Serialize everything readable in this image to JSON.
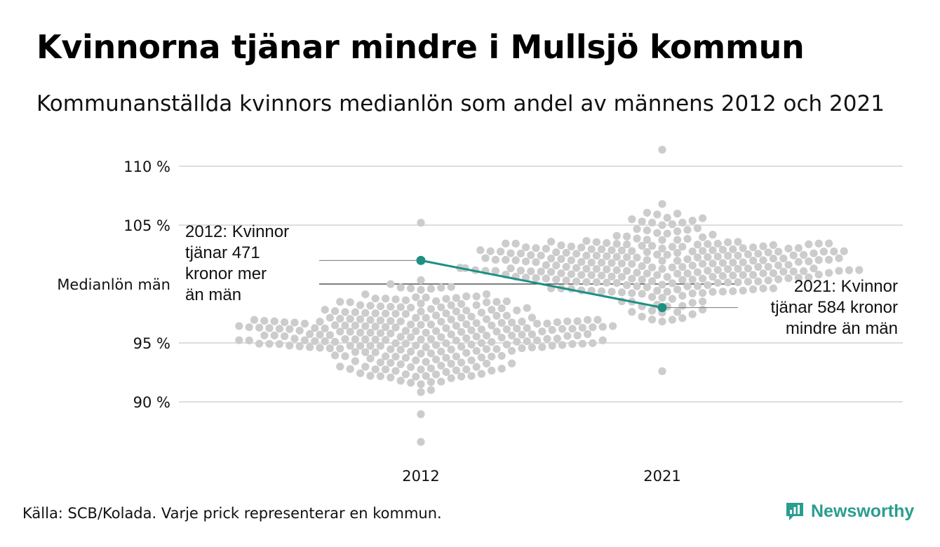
{
  "title": "Kvinnorna tjänar mindre i Mullsjö kommun",
  "subtitle": "Kommunanställda kvinnors medianlön som andel av männens 2012 och 2021",
  "source": "Källa: SCB/Kolada. Varje prick representerar en kommun.",
  "brand": "Newsworthy",
  "colors": {
    "dots": "#cccccc",
    "highlight": "#1e9083",
    "grid": "#dddddd",
    "reference": "#333333",
    "brand": "#2a9d8f"
  },
  "chart_data": {
    "type": "scatter",
    "subtype": "beeswarm with highlighted series",
    "categories": [
      "2012",
      "2021"
    ],
    "ylabel": "",
    "ylim": [
      86,
      112
    ],
    "yticks": [
      {
        "value": 90,
        "label": "90 %"
      },
      {
        "value": 95,
        "label": "95 %"
      },
      {
        "value": 100,
        "label": "Medianlön män"
      },
      {
        "value": 105,
        "label": "105 %"
      },
      {
        "value": 110,
        "label": "110 %"
      }
    ],
    "reference_line": {
      "value": 100,
      "label": "Medianlön män"
    },
    "highlight": {
      "values": [
        102.0,
        98.0
      ],
      "annotations": [
        {
          "category": "2012",
          "lines": [
            "2012: Kvinnor",
            "tjänar 471",
            "kronor mer",
            "än män"
          ]
        },
        {
          "category": "2021",
          "lines": [
            "2021: Kvinnor",
            "tjänar 584 kronor",
            "mindre än män"
          ]
        }
      ]
    },
    "distribution": [
      {
        "category": "2012",
        "n": 290,
        "center": 95.5,
        "spread": 2.6,
        "min": 86.6,
        "max": 105.2
      },
      {
        "category": "2021",
        "n": 290,
        "center": 101.6,
        "spread": 2.6,
        "min": 92.6,
        "max": 111.4
      }
    ],
    "grid": true,
    "legend": "none"
  }
}
